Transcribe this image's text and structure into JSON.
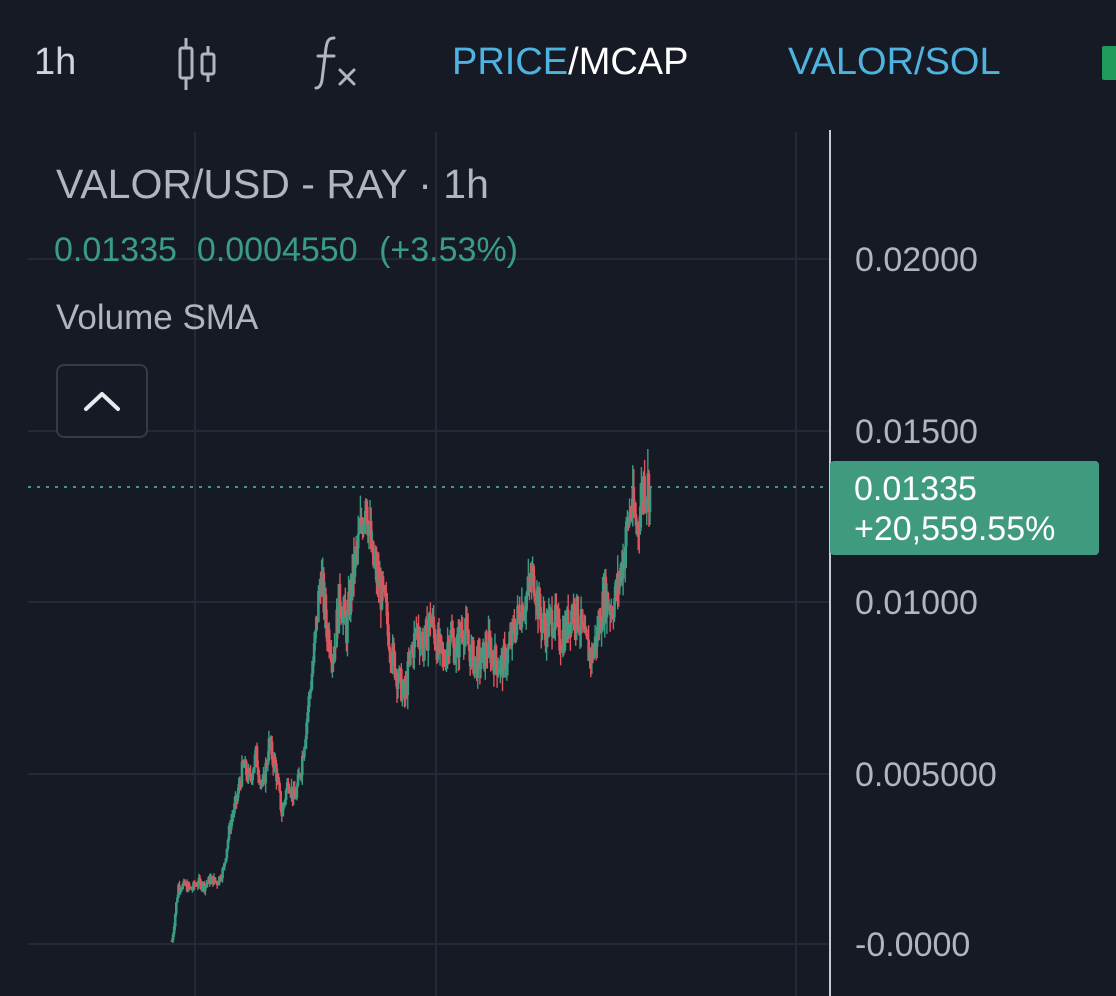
{
  "toolbar": {
    "interval": "1h",
    "candle_icon": "candlestick-icon",
    "indicator_icon": "function-fx-icon",
    "price_label": "PRICE",
    "separator": "/",
    "mcap_label": "MCAP",
    "pair_label": "VALOR/SOL"
  },
  "legend": {
    "title": "VALOR/USD - RAY · 1h",
    "last_price": "0.01335",
    "change_abs": "0.0004550",
    "change_pct": "(+3.53%)",
    "volume_label": "Volume SMA",
    "collapse_icon": "chevron-up-icon"
  },
  "price_axis": {
    "labels": [
      "0.02000",
      "0.01500",
      "0.01000",
      "0.005000",
      "-0.0000"
    ]
  },
  "price_tag": {
    "price": "0.01335",
    "change": "+20,559.55%"
  },
  "colors": {
    "background": "#161a25",
    "up": "#3a9d82",
    "down": "#e0545e",
    "accent": "#4fb3e0",
    "price_tag": "#409a80"
  },
  "chart_data": {
    "type": "candlestick",
    "title": "VALOR/USD - RAY · 1h",
    "interval": "1h",
    "ylim": [
      -0.0003,
      0.0228
    ],
    "y_ticks": [
      0,
      0.005,
      0.01,
      0.015,
      0.02
    ],
    "grid": true,
    "last_price": 0.01335,
    "close_trace": [
      0.0001,
      0.0017,
      0.0017,
      0.0016,
      0.0018,
      0.0017,
      0.0019,
      0.0018,
      0.0022,
      0.0035,
      0.0042,
      0.0052,
      0.0048,
      0.0055,
      0.0045,
      0.0058,
      0.0052,
      0.0038,
      0.0048,
      0.0042,
      0.0052,
      0.0068,
      0.0085,
      0.0108,
      0.0092,
      0.0085,
      0.0102,
      0.0092,
      0.0108,
      0.0118,
      0.0132,
      0.0112,
      0.0105,
      0.0098,
      0.0085,
      0.0078,
      0.0072,
      0.0085,
      0.0092,
      0.0087,
      0.0095,
      0.0088,
      0.0082,
      0.0091,
      0.0085,
      0.0094,
      0.0086,
      0.0082,
      0.0083,
      0.0087,
      0.0083,
      0.0081,
      0.0085,
      0.0092,
      0.0098,
      0.0102,
      0.0108,
      0.0095,
      0.0092,
      0.0096,
      0.0089,
      0.0092,
      0.0098,
      0.0095,
      0.0087,
      0.0084,
      0.0092,
      0.0102,
      0.0098,
      0.0104,
      0.0115,
      0.0128,
      0.0122,
      0.0135,
      0.01335
    ]
  }
}
